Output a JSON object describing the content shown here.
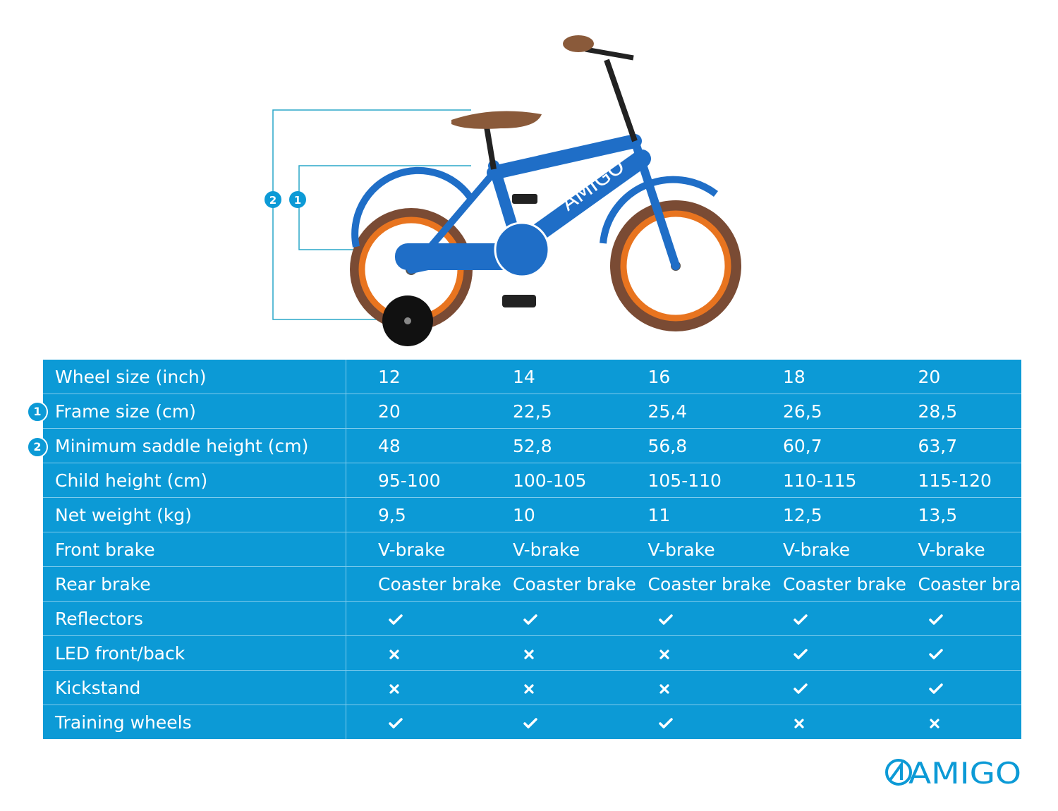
{
  "badges": {
    "frame": "1",
    "saddle": "2"
  },
  "brand": "AMIGO",
  "bike_logo": "AMIGO",
  "colors": {
    "table": "#0c9ad6",
    "divider": "#7fcbec",
    "bike": "#1f6ec7",
    "tire": "#7a4b34",
    "rim": "#e8741f"
  },
  "icons": {
    "yes": "check-icon",
    "no": "cross-icon"
  },
  "table": {
    "rows": [
      {
        "label": "Wheel size (inch)",
        "values": [
          "12",
          "14",
          "16",
          "18",
          "20"
        ]
      },
      {
        "label": "Frame size (cm)",
        "badge": "1",
        "values": [
          "20",
          "22,5",
          "25,4",
          "26,5",
          "28,5"
        ]
      },
      {
        "label": "Minimum saddle height (cm)",
        "badge": "2",
        "values": [
          "48",
          "52,8",
          "56,8",
          "60,7",
          "63,7"
        ]
      },
      {
        "label": "Child height (cm)",
        "values": [
          "95-100",
          "100-105",
          "105-110",
          "110-115",
          "115-120"
        ]
      },
      {
        "label": "Net weight (kg)",
        "values": [
          "9,5",
          "10",
          "11",
          "12,5",
          "13,5"
        ]
      },
      {
        "label": "Front brake",
        "values": [
          "V-brake",
          "V-brake",
          "V-brake",
          "V-brake",
          "V-brake"
        ]
      },
      {
        "label": "Rear brake",
        "values": [
          "Coaster brake",
          "Coaster brake",
          "Coaster brake",
          "Coaster brake",
          "Coaster brake"
        ]
      },
      {
        "label": "Reflectors",
        "marks": [
          true,
          true,
          true,
          true,
          true
        ]
      },
      {
        "label": "LED front/back",
        "marks": [
          false,
          false,
          false,
          true,
          true
        ]
      },
      {
        "label": "Kickstand",
        "marks": [
          false,
          false,
          false,
          true,
          true
        ]
      },
      {
        "label": "Training wheels",
        "marks": [
          true,
          true,
          true,
          false,
          false
        ]
      }
    ]
  }
}
